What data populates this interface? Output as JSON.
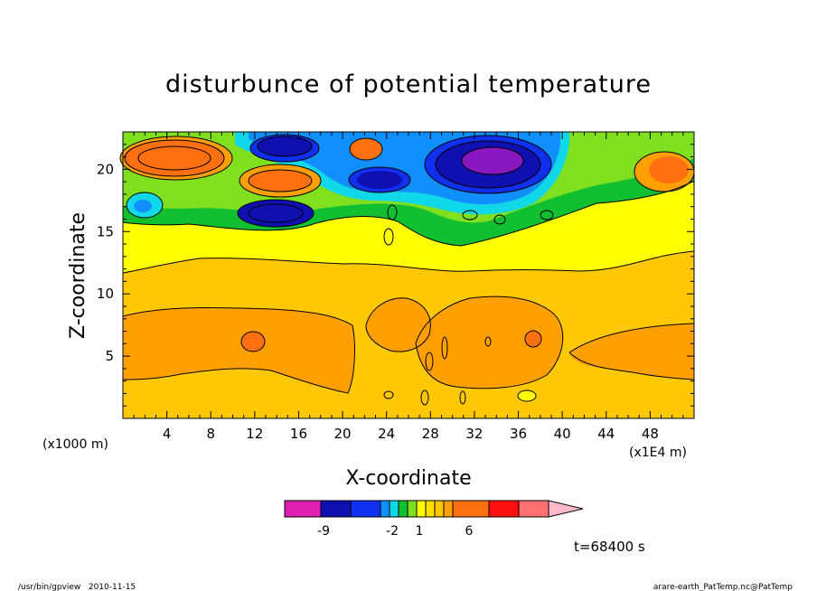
{
  "chart_data": {
    "type": "heatmap",
    "title": "disturbunce of potential temperature",
    "xlabel": "X-coordinate",
    "ylabel": "Z-coordinate",
    "x_unit_left": "(x1000 m)",
    "x_unit_right": "(x1E4 m)",
    "xlim": [
      0,
      52
    ],
    "ylim": [
      0,
      23
    ],
    "x_ticks": [
      "4",
      "8",
      "12",
      "16",
      "20",
      "24",
      "28",
      "32",
      "36",
      "40",
      "44",
      "48"
    ],
    "y_ticks": [
      "5",
      "10",
      "15",
      "20"
    ],
    "colorbar": {
      "tick_labels": [
        "-9",
        "-2",
        "1",
        "6"
      ],
      "colors": [
        "#e020b0",
        "#8a18c0",
        "#1010b0",
        "#1030f0",
        "#1090ff",
        "#10d8e8",
        "#10c030",
        "#80e020",
        "#ffff00",
        "#ffe000",
        "#ffc800",
        "#ffa000",
        "#ff7010",
        "#ff1010",
        "#ff7070",
        "#ffb8c8"
      ]
    },
    "time_label": "t=68400 s"
  },
  "footer": {
    "left": "/usr/bin/gpview   2010-11-15",
    "right": "arare-earth_PatTemp.nc@PatTemp"
  }
}
